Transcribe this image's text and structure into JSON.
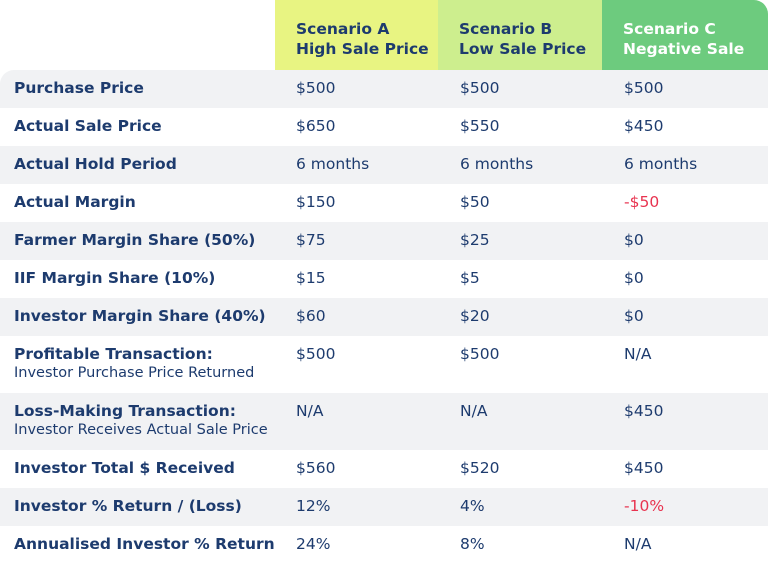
{
  "header": {
    "scenario_a": {
      "line1": "Scenario A",
      "line2": "High Sale Price",
      "color": "#e8f482"
    },
    "scenario_b": {
      "line1": "Scenario B",
      "line2": "Low Sale Price",
      "color": "#cdee8e"
    },
    "scenario_c": {
      "line1": "Scenario C",
      "line2": "Negative Sale",
      "color": "#6dcb7e"
    }
  },
  "colors": {
    "text": "#1d3b6e",
    "negative": "#e8334f",
    "row_shade": "#f1f2f4"
  },
  "rows": [
    {
      "label": "Purchase Price",
      "a": "$500",
      "b": "$500",
      "c": "$500"
    },
    {
      "label": "Actual Sale Price",
      "a": "$650",
      "b": "$550",
      "c": "$450"
    },
    {
      "label": "Actual Hold Period",
      "a": "6 months",
      "b": "6 months",
      "c": "6 months"
    },
    {
      "label": "Actual Margin",
      "a": "$150",
      "b": "$50",
      "c": "-$50"
    },
    {
      "label": "Farmer Margin Share (50%)",
      "a": "$75",
      "b": "$25",
      "c": "$0"
    },
    {
      "label": "IIF Margin Share (10%)",
      "a": "$15",
      "b": "$5",
      "c": "$0"
    },
    {
      "label": "Investor Margin Share (40%)",
      "a": "$60",
      "b": "$20",
      "c": "$0"
    },
    {
      "label": "Profitable Transaction:",
      "sublabel": "Investor Purchase Price Returned",
      "a": "$500",
      "b": "$500",
      "c": "N/A"
    },
    {
      "label": "Loss-Making Transaction:",
      "sublabel": "Investor Receives Actual Sale Price",
      "a": "N/A",
      "b": "N/A",
      "c": "$450"
    },
    {
      "label": "Investor Total $ Received",
      "a": "$560",
      "b": "$520",
      "c": "$450"
    },
    {
      "label": "Investor % Return / (Loss)",
      "a": "12%",
      "b": "4%",
      "c": "-10%"
    },
    {
      "label": "Annualised Investor % Return",
      "a": "24%",
      "b": "8%",
      "c": "N/A"
    }
  ]
}
